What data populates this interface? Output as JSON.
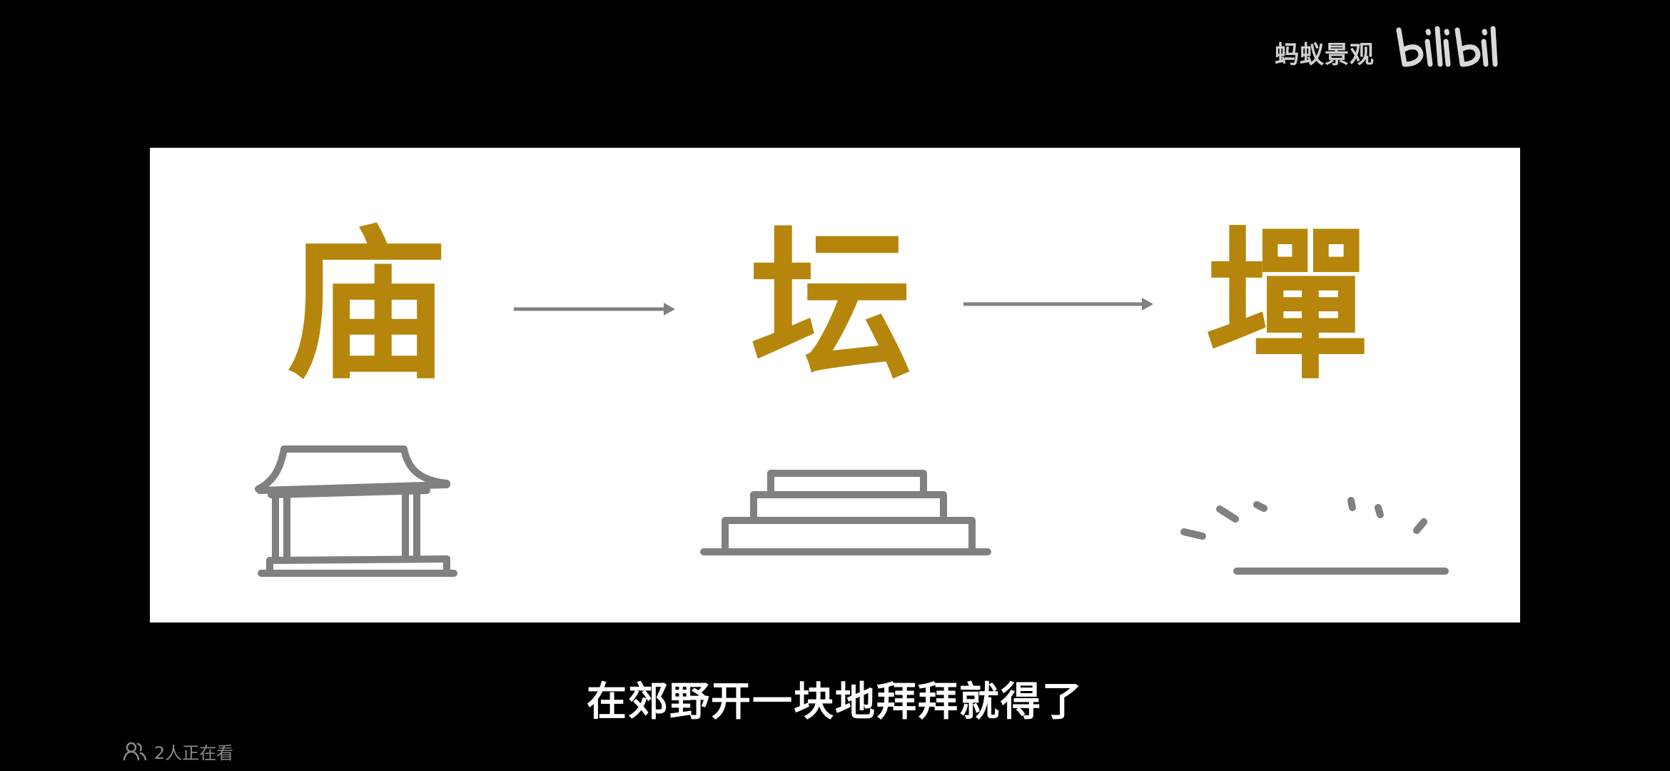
{
  "watermark": {
    "channel_name": "蚂蚁景观",
    "platform_logo": "bilibili"
  },
  "slide": {
    "characters": [
      "庙",
      "坛",
      "墠"
    ],
    "illustrations": [
      "temple-building-icon",
      "stepped-altar-icon",
      "cleared-ground-icon"
    ],
    "accent_color": "#b5860b",
    "line_color": "#808080"
  },
  "subtitle": "在郊野开一块地拜拜就得了",
  "viewer_count": {
    "icon": "viewers-icon",
    "text": "2人正在看"
  }
}
